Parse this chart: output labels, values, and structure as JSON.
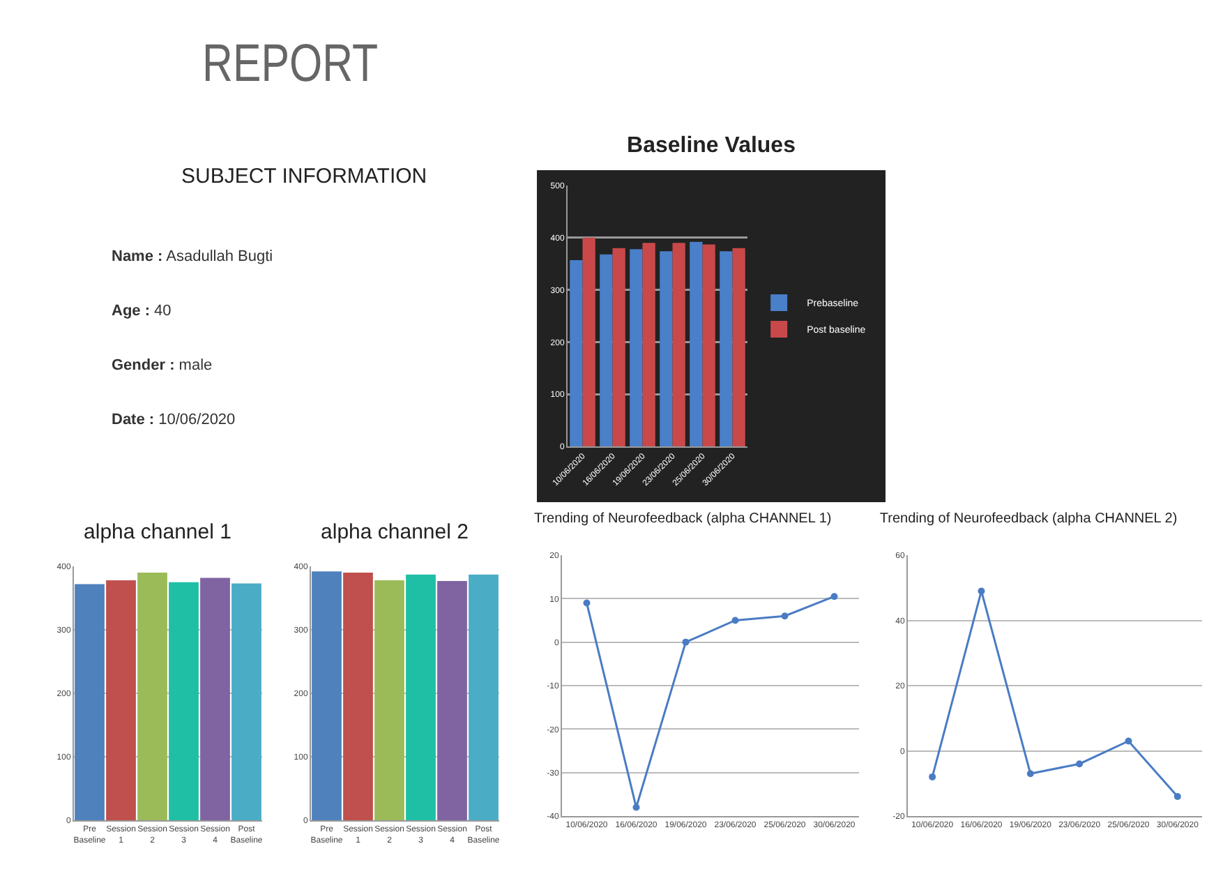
{
  "chart_data": [
    {
      "type": "other",
      "title": "REPORT",
      "subtitle": "SUBJECT INFORMATION",
      "annotations": [
        "Name : Asadullah Bugti",
        "Age : 40",
        "Gender : male",
        "Date : 10/06/2020"
      ]
    },
    {
      "type": "bar",
      "title": "Baseline Values",
      "categories": [
        "10/06/2020",
        "16/06/2020",
        "19/06/2020",
        "23/06/2020",
        "25/06/2020",
        "30/06/2020"
      ],
      "series": [
        {
          "name": "Prebaseline",
          "color": "#4a7fc9",
          "values": [
            357,
            368,
            378,
            374,
            392,
            374
          ]
        },
        {
          "name": "Post baseline",
          "color": "#c9494b",
          "values": [
            400,
            380,
            390,
            390,
            387,
            380
          ]
        }
      ],
      "ylim": [
        0,
        500
      ],
      "yticks": [
        0,
        100,
        200,
        300,
        400,
        500
      ],
      "grid": "y",
      "legend": "right"
    },
    {
      "type": "bar",
      "title": "alpha channel 1",
      "categories": [
        "Pre Baseline",
        "Session 1",
        "Session 2",
        "Session 3",
        "Session 4",
        "Post Baseline"
      ],
      "values": [
        372,
        378,
        390,
        375,
        382,
        373
      ],
      "colors": [
        "#4f81bd",
        "#c0504d",
        "#9bbb59",
        "#1fbfa5",
        "#8064a2",
        "#4bacc6"
      ],
      "ylim": [
        0,
        400
      ],
      "yticks": [
        0,
        100,
        200,
        300,
        400
      ],
      "grid": "y"
    },
    {
      "type": "bar",
      "title": "alpha channel 2",
      "categories": [
        "Pre Baseline",
        "Session 1",
        "Session 2",
        "Session 3",
        "Session 4",
        "Post Baseline"
      ],
      "values": [
        392,
        390,
        378,
        387,
        377,
        387
      ],
      "colors": [
        "#4f81bd",
        "#c0504d",
        "#9bbb59",
        "#1fbfa5",
        "#8064a2",
        "#4bacc6"
      ],
      "ylim": [
        0,
        400
      ],
      "yticks": [
        0,
        100,
        200,
        300,
        400
      ],
      "grid": "y"
    },
    {
      "type": "line",
      "title": "Trending of Neurofeedback (alpha CHANNEL 1)",
      "categories": [
        "10/06/2020",
        "16/06/2020",
        "19/06/2020",
        "23/06/2020",
        "25/06/2020",
        "30/06/2020"
      ],
      "series": [
        {
          "color": "#4a7cc4",
          "values": [
            9,
            -38,
            0,
            5,
            6,
            10.5
          ]
        }
      ],
      "ylim": [
        -40,
        20
      ],
      "yticks": [
        -40,
        -30,
        -20,
        -10,
        0,
        10,
        20
      ],
      "grid": "y",
      "marker": "circle"
    },
    {
      "type": "line",
      "title": "Trending of Neurofeedback (alpha CHANNEL 2)",
      "categories": [
        "10/06/2020",
        "16/06/2020",
        "19/06/2020",
        "23/06/2020",
        "25/06/2020",
        "30/06/2020"
      ],
      "series": [
        {
          "color": "#4a7cc4",
          "values": [
            -8,
            49,
            -7,
            -4,
            3,
            -14
          ]
        }
      ],
      "ylim": [
        -20,
        60
      ],
      "yticks": [
        -20,
        0,
        20,
        40,
        60
      ],
      "grid": "y",
      "marker": "circle"
    }
  ]
}
